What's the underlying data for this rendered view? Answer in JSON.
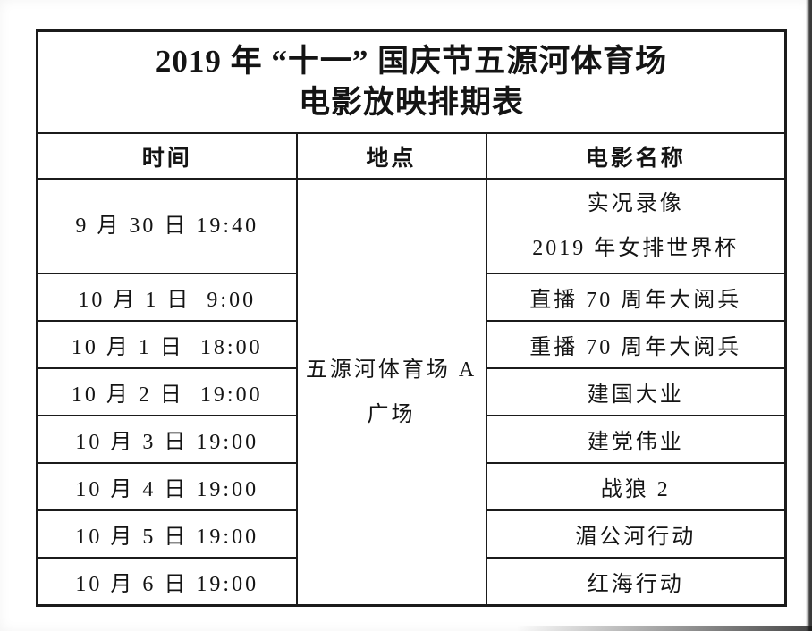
{
  "page": {
    "background": "#ffffff",
    "text_color": "#141414",
    "border_color": "#1b1b1b"
  },
  "table": {
    "title_line1": "2019 年 “十一” 国庆节五源河体育场",
    "title_line2": "电影放映排期表",
    "columns": {
      "time": "时间",
      "location": "地点",
      "movie": "电影名称"
    },
    "location": {
      "line1": "五源河体育场 A",
      "line2": "广场"
    },
    "rows": [
      {
        "time": "9 月 30 日 19:40",
        "movie_line1": "实况录像",
        "movie_line2": "2019 年女排世界杯"
      },
      {
        "time": "10 月 1 日  9:00",
        "movie": "直播 70 周年大阅兵"
      },
      {
        "time": "10 月 1 日  18:00",
        "movie": "重播 70 周年大阅兵"
      },
      {
        "time": "10 月 2 日  19:00",
        "movie": "建国大业"
      },
      {
        "time": "10 月 3 日 19:00",
        "movie": "建党伟业"
      },
      {
        "time": "10 月 4 日 19:00",
        "movie": "战狼 2"
      },
      {
        "time": "10 月 5 日 19:00",
        "movie": "湄公河行动"
      },
      {
        "time": "10 月 6 日 19:00",
        "movie": "红海行动"
      }
    ]
  }
}
